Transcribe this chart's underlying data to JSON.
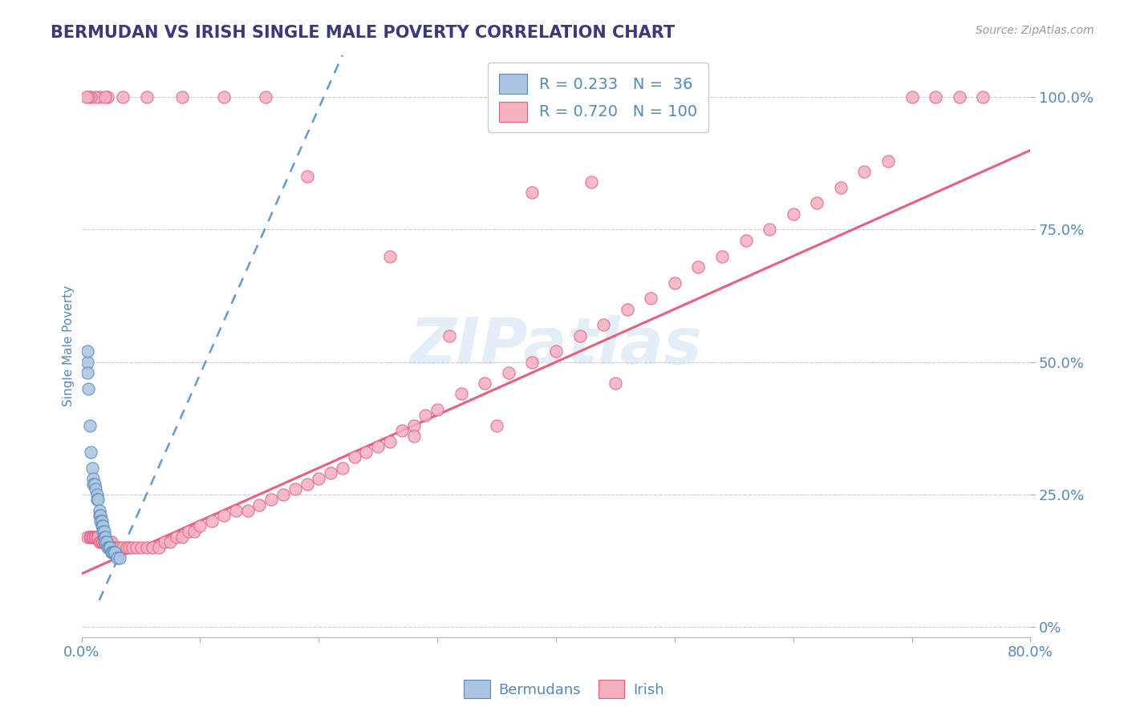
{
  "title": "BERMUDAN VS IRISH SINGLE MALE POVERTY CORRELATION CHART",
  "source_text": "Source: ZipAtlas.com",
  "ylabel": "Single Male Poverty",
  "watermark": "ZIPatlas",
  "xlim": [
    0.0,
    0.8
  ],
  "ylim": [
    -0.02,
    1.08
  ],
  "x_ticks": [
    0.0,
    0.1,
    0.2,
    0.3,
    0.4,
    0.5,
    0.6,
    0.7,
    0.8
  ],
  "y_ticks_right": [
    0.0,
    0.25,
    0.5,
    0.75,
    1.0
  ],
  "y_tick_labels_right": [
    "0%",
    "25.0%",
    "50.0%",
    "75.0%",
    "100.0%"
  ],
  "legend_r_bermudan": "0.233",
  "legend_n_bermudan": "36",
  "legend_r_irish": "0.720",
  "legend_n_irish": "100",
  "bermudan_color": "#aac4e2",
  "irish_color": "#f5b0c0",
  "bermudan_edge_color": "#5588bb",
  "irish_edge_color": "#e06080",
  "bermudan_line_color": "#6699cc",
  "irish_line_color": "#e86080",
  "title_color": "#3a3a7a",
  "axis_label_color": "#5588bb",
  "tick_color": "#5588bb",
  "grid_color": "#cccccc",
  "background_color": "#ffffff",
  "irish_line_x0": 0.0,
  "irish_line_y0": 0.1,
  "irish_line_x1": 0.8,
  "irish_line_y1": 0.9,
  "bermudan_line_x0": 0.015,
  "bermudan_line_y0": 0.05,
  "bermudan_line_x1": 0.22,
  "bermudan_line_y1": 1.08,
  "bermudan_scatter_x": [
    0.005,
    0.005,
    0.007,
    0.008,
    0.009,
    0.01,
    0.01,
    0.011,
    0.012,
    0.013,
    0.013,
    0.014,
    0.015,
    0.015,
    0.016,
    0.016,
    0.017,
    0.017,
    0.018,
    0.018,
    0.019,
    0.019,
    0.02,
    0.02,
    0.021,
    0.022,
    0.023,
    0.024,
    0.025,
    0.026,
    0.027,
    0.028,
    0.03,
    0.032,
    0.005,
    0.006
  ],
  "bermudan_scatter_y": [
    0.5,
    0.52,
    0.38,
    0.33,
    0.3,
    0.28,
    0.27,
    0.27,
    0.26,
    0.25,
    0.24,
    0.24,
    0.22,
    0.21,
    0.21,
    0.2,
    0.2,
    0.19,
    0.19,
    0.18,
    0.18,
    0.17,
    0.17,
    0.16,
    0.16,
    0.15,
    0.15,
    0.15,
    0.14,
    0.14,
    0.14,
    0.14,
    0.13,
    0.13,
    0.48,
    0.45
  ],
  "irish_scatter_x": [
    0.005,
    0.007,
    0.008,
    0.009,
    0.01,
    0.011,
    0.012,
    0.013,
    0.014,
    0.015,
    0.016,
    0.017,
    0.018,
    0.019,
    0.02,
    0.022,
    0.024,
    0.025,
    0.027,
    0.03,
    0.032,
    0.035,
    0.038,
    0.04,
    0.043,
    0.046,
    0.05,
    0.055,
    0.06,
    0.065,
    0.07,
    0.075,
    0.08,
    0.085,
    0.09,
    0.095,
    0.1,
    0.11,
    0.12,
    0.13,
    0.14,
    0.15,
    0.16,
    0.17,
    0.18,
    0.19,
    0.2,
    0.21,
    0.22,
    0.23,
    0.24,
    0.25,
    0.26,
    0.27,
    0.28,
    0.29,
    0.3,
    0.32,
    0.34,
    0.36,
    0.38,
    0.4,
    0.42,
    0.44,
    0.46,
    0.48,
    0.5,
    0.52,
    0.54,
    0.56,
    0.58,
    0.6,
    0.62,
    0.64,
    0.66,
    0.68,
    0.7,
    0.72,
    0.74,
    0.76,
    0.35,
    0.43,
    0.28,
    0.45,
    0.38,
    0.31,
    0.26,
    0.19,
    0.155,
    0.12,
    0.085,
    0.055,
    0.035,
    0.022,
    0.015,
    0.012,
    0.008,
    0.006,
    0.004,
    0.02
  ],
  "irish_scatter_y": [
    0.17,
    0.17,
    0.17,
    0.17,
    0.17,
    0.17,
    0.17,
    0.17,
    0.17,
    0.16,
    0.16,
    0.16,
    0.16,
    0.16,
    0.16,
    0.16,
    0.16,
    0.16,
    0.15,
    0.15,
    0.15,
    0.15,
    0.15,
    0.15,
    0.15,
    0.15,
    0.15,
    0.15,
    0.15,
    0.15,
    0.16,
    0.16,
    0.17,
    0.17,
    0.18,
    0.18,
    0.19,
    0.2,
    0.21,
    0.22,
    0.22,
    0.23,
    0.24,
    0.25,
    0.26,
    0.27,
    0.28,
    0.29,
    0.3,
    0.32,
    0.33,
    0.34,
    0.35,
    0.37,
    0.38,
    0.4,
    0.41,
    0.44,
    0.46,
    0.48,
    0.5,
    0.52,
    0.55,
    0.57,
    0.6,
    0.62,
    0.65,
    0.68,
    0.7,
    0.73,
    0.75,
    0.78,
    0.8,
    0.83,
    0.86,
    0.88,
    1.0,
    1.0,
    1.0,
    1.0,
    0.38,
    0.84,
    0.36,
    0.46,
    0.82,
    0.55,
    0.7,
    0.85,
    1.0,
    1.0,
    1.0,
    1.0,
    1.0,
    1.0,
    1.0,
    1.0,
    1.0,
    1.0,
    1.0,
    1.0
  ]
}
